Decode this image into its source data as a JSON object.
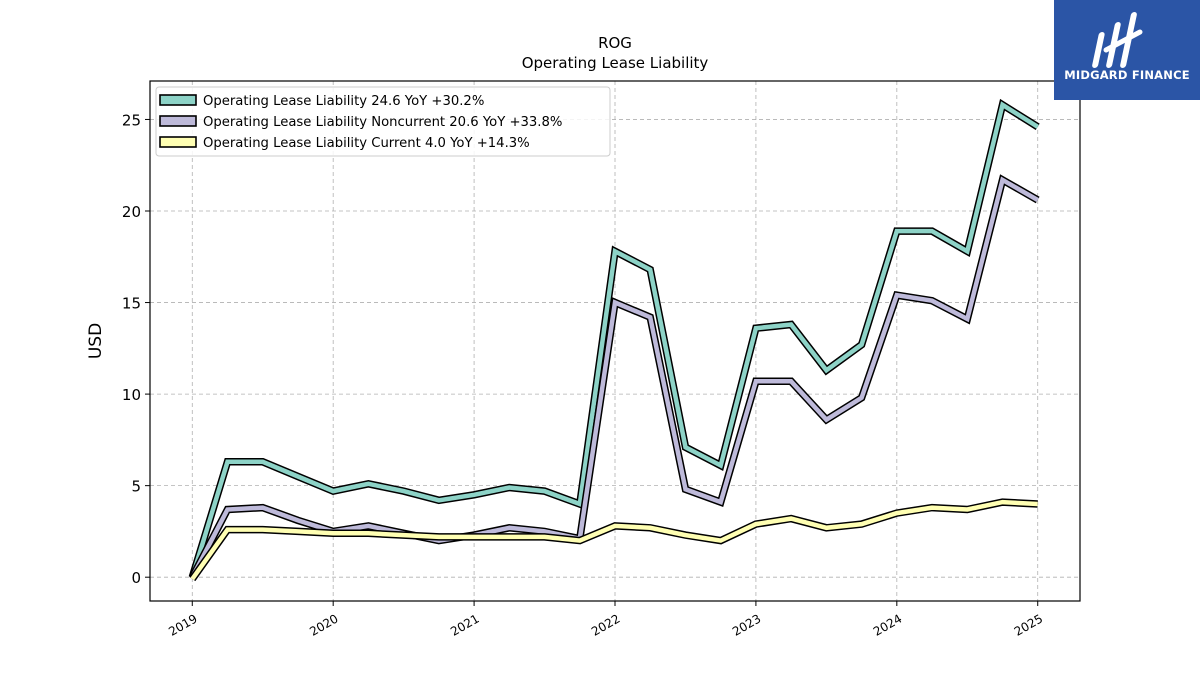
{
  "chart_data": {
    "type": "line",
    "title": "ROG",
    "subtitle": "Operating Lease Liability",
    "xlabel": "",
    "ylabel": "USD",
    "xlim": [
      2018.7,
      2025.3
    ],
    "ylim": [
      -1.3,
      27.1
    ],
    "x_ticks": [
      {
        "value": 2019,
        "label": "2019"
      },
      {
        "value": 2020,
        "label": "2020"
      },
      {
        "value": 2021,
        "label": "2021"
      },
      {
        "value": 2022,
        "label": "2022"
      },
      {
        "value": 2023,
        "label": "2023"
      },
      {
        "value": 2024,
        "label": "2024"
      },
      {
        "value": 2025,
        "label": "2025"
      }
    ],
    "y_ticks": [
      {
        "value": 0,
        "label": "0"
      },
      {
        "value": 5,
        "label": "5"
      },
      {
        "value": 10,
        "label": "10"
      },
      {
        "value": 15,
        "label": "15"
      },
      {
        "value": 20,
        "label": "20"
      },
      {
        "value": 25,
        "label": "25"
      }
    ],
    "grid": true,
    "legend_position": "top-left",
    "x": [
      2019.0,
      2019.25,
      2019.5,
      2019.75,
      2020.0,
      2020.25,
      2020.5,
      2020.75,
      2021.0,
      2021.25,
      2021.5,
      2021.75,
      2022.0,
      2022.25,
      2022.5,
      2022.75,
      2023.0,
      2023.25,
      2023.5,
      2023.75,
      2024.0,
      2024.25,
      2024.5,
      2024.75,
      2025.0
    ],
    "series": [
      {
        "name": "Operating Lease Liability",
        "legend_label": "Operating Lease Liability  24.6 YoY +30.2%",
        "color": "#8dd3c7",
        "values": [
          0.0,
          6.3,
          6.3,
          5.5,
          4.7,
          5.1,
          4.7,
          4.2,
          4.5,
          4.9,
          4.7,
          4.0,
          17.8,
          16.8,
          7.1,
          6.1,
          13.6,
          13.8,
          11.3,
          12.7,
          18.9,
          18.9,
          17.8,
          25.8,
          24.6
        ]
      },
      {
        "name": "Operating Lease Liability Noncurrent",
        "legend_label": "Operating Lease Liability Noncurrent  20.6 YoY +33.8%",
        "color": "#bebada",
        "values": [
          0.0,
          3.7,
          3.8,
          3.1,
          2.5,
          2.8,
          2.4,
          2.0,
          2.3,
          2.7,
          2.5,
          2.1,
          15.0,
          14.2,
          4.8,
          4.1,
          10.7,
          10.7,
          8.6,
          9.8,
          15.4,
          15.1,
          14.1,
          21.7,
          20.6
        ]
      },
      {
        "name": "Operating Lease Liability Current",
        "legend_label": "Operating Lease Liability Current  4.0 YoY +14.3%",
        "color": "#ffffb3",
        "values": [
          -0.1,
          2.6,
          2.6,
          2.5,
          2.4,
          2.4,
          2.3,
          2.2,
          2.2,
          2.2,
          2.2,
          2.0,
          2.8,
          2.7,
          2.3,
          2.0,
          2.9,
          3.2,
          2.7,
          2.9,
          3.5,
          3.8,
          3.7,
          4.1,
          4.0
        ]
      }
    ]
  },
  "logo": {
    "text": "MIDGARD FINANCE",
    "color": "#2b55a6"
  }
}
